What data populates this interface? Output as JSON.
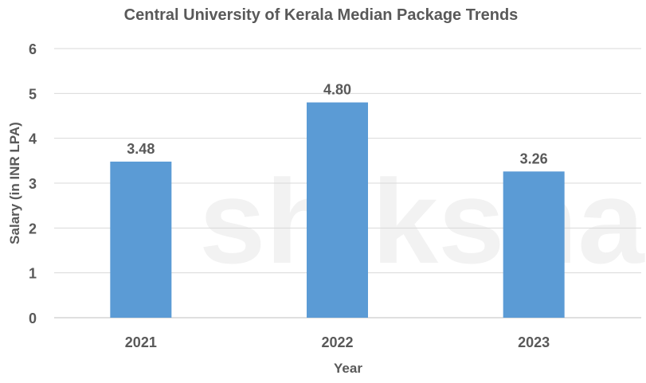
{
  "chart_data": {
    "type": "bar",
    "title": "Central University of Kerala Median Package Trends",
    "xlabel": "Year",
    "ylabel": "Salary (in INR LPA)",
    "categories": [
      "2021",
      "2022",
      "2023"
    ],
    "values": [
      3.48,
      4.8,
      3.26
    ],
    "data_labels": [
      "3.48",
      "4.80",
      "3.26"
    ],
    "ylim": [
      0,
      6
    ],
    "yticks": [
      "0",
      "1",
      "2",
      "3",
      "4",
      "5",
      "6"
    ],
    "grid": true,
    "legend": "none",
    "bar_color": "#5B9BD5"
  },
  "watermark": "shiksha"
}
